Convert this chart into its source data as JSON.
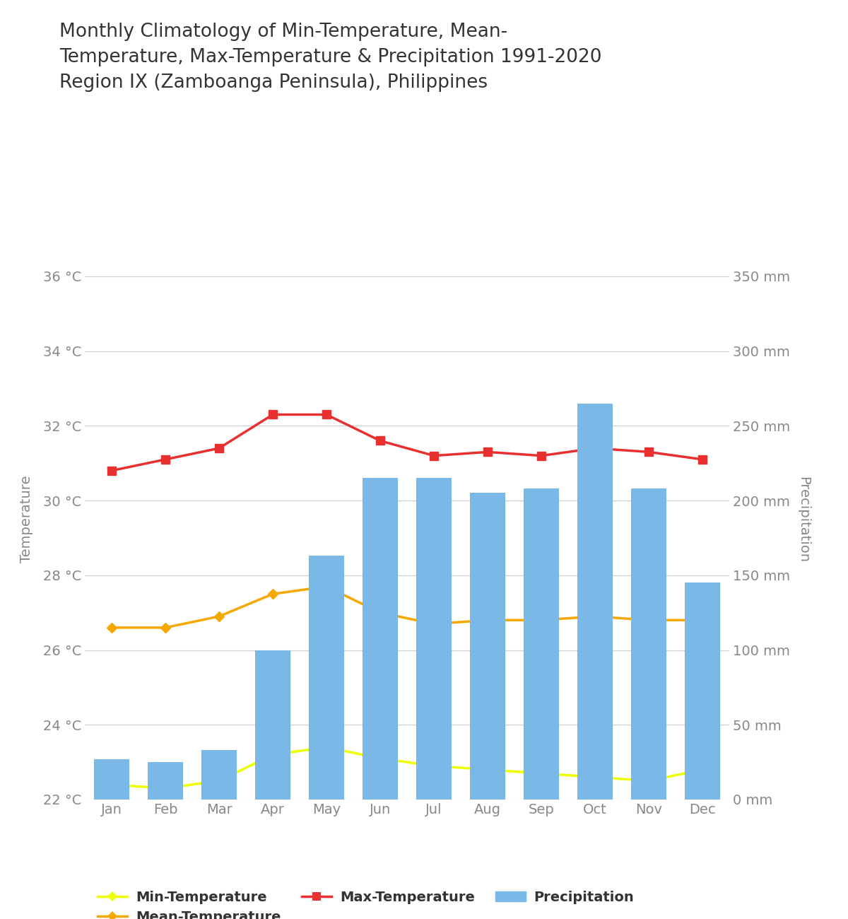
{
  "months": [
    "Jan",
    "Feb",
    "Mar",
    "Apr",
    "May",
    "Jun",
    "Jul",
    "Aug",
    "Sep",
    "Oct",
    "Nov",
    "Dec"
  ],
  "min_temp": [
    22.4,
    22.3,
    22.5,
    23.2,
    23.4,
    23.1,
    22.9,
    22.8,
    22.7,
    22.6,
    22.5,
    22.8
  ],
  "mean_temp": [
    26.6,
    26.6,
    26.9,
    27.5,
    27.7,
    27.0,
    26.7,
    26.8,
    26.8,
    26.9,
    26.8,
    26.8
  ],
  "max_temp": [
    30.8,
    31.1,
    31.4,
    32.3,
    32.3,
    31.6,
    31.2,
    31.3,
    31.2,
    31.4,
    31.3,
    31.1
  ],
  "precipitation": [
    27.0,
    25.0,
    33.0,
    100.0,
    163.0,
    215.0,
    215.0,
    205.0,
    208.0,
    265.0,
    208.0,
    145.0
  ],
  "title": "Monthly Climatology of Min-Temperature, Mean-\nTemperature, Max-Temperature & Precipitation 1991-2020\nRegion IX (Zamboanga Peninsula), Philippines",
  "ylabel_left": "Temperature",
  "ylabel_right": "Precipitation",
  "temp_ylim": [
    22,
    37
  ],
  "precip_ylim": [
    0,
    375
  ],
  "temp_yticks": [
    22,
    24,
    26,
    28,
    30,
    32,
    34,
    36
  ],
  "precip_yticks": [
    0,
    50,
    100,
    150,
    200,
    250,
    300,
    350
  ],
  "bar_color": "#7ab8e8",
  "min_temp_color": "#eeff00",
  "mean_temp_color": "#f5a800",
  "max_temp_color": "#e83030",
  "background_color": "#ffffff",
  "tick_color": "#888888",
  "grid_color": "#cccccc",
  "title_color": "#333333",
  "legend_labels": [
    "Min-Temperature",
    "Mean-Temperature",
    "Max-Temperature",
    "Precipitation"
  ]
}
